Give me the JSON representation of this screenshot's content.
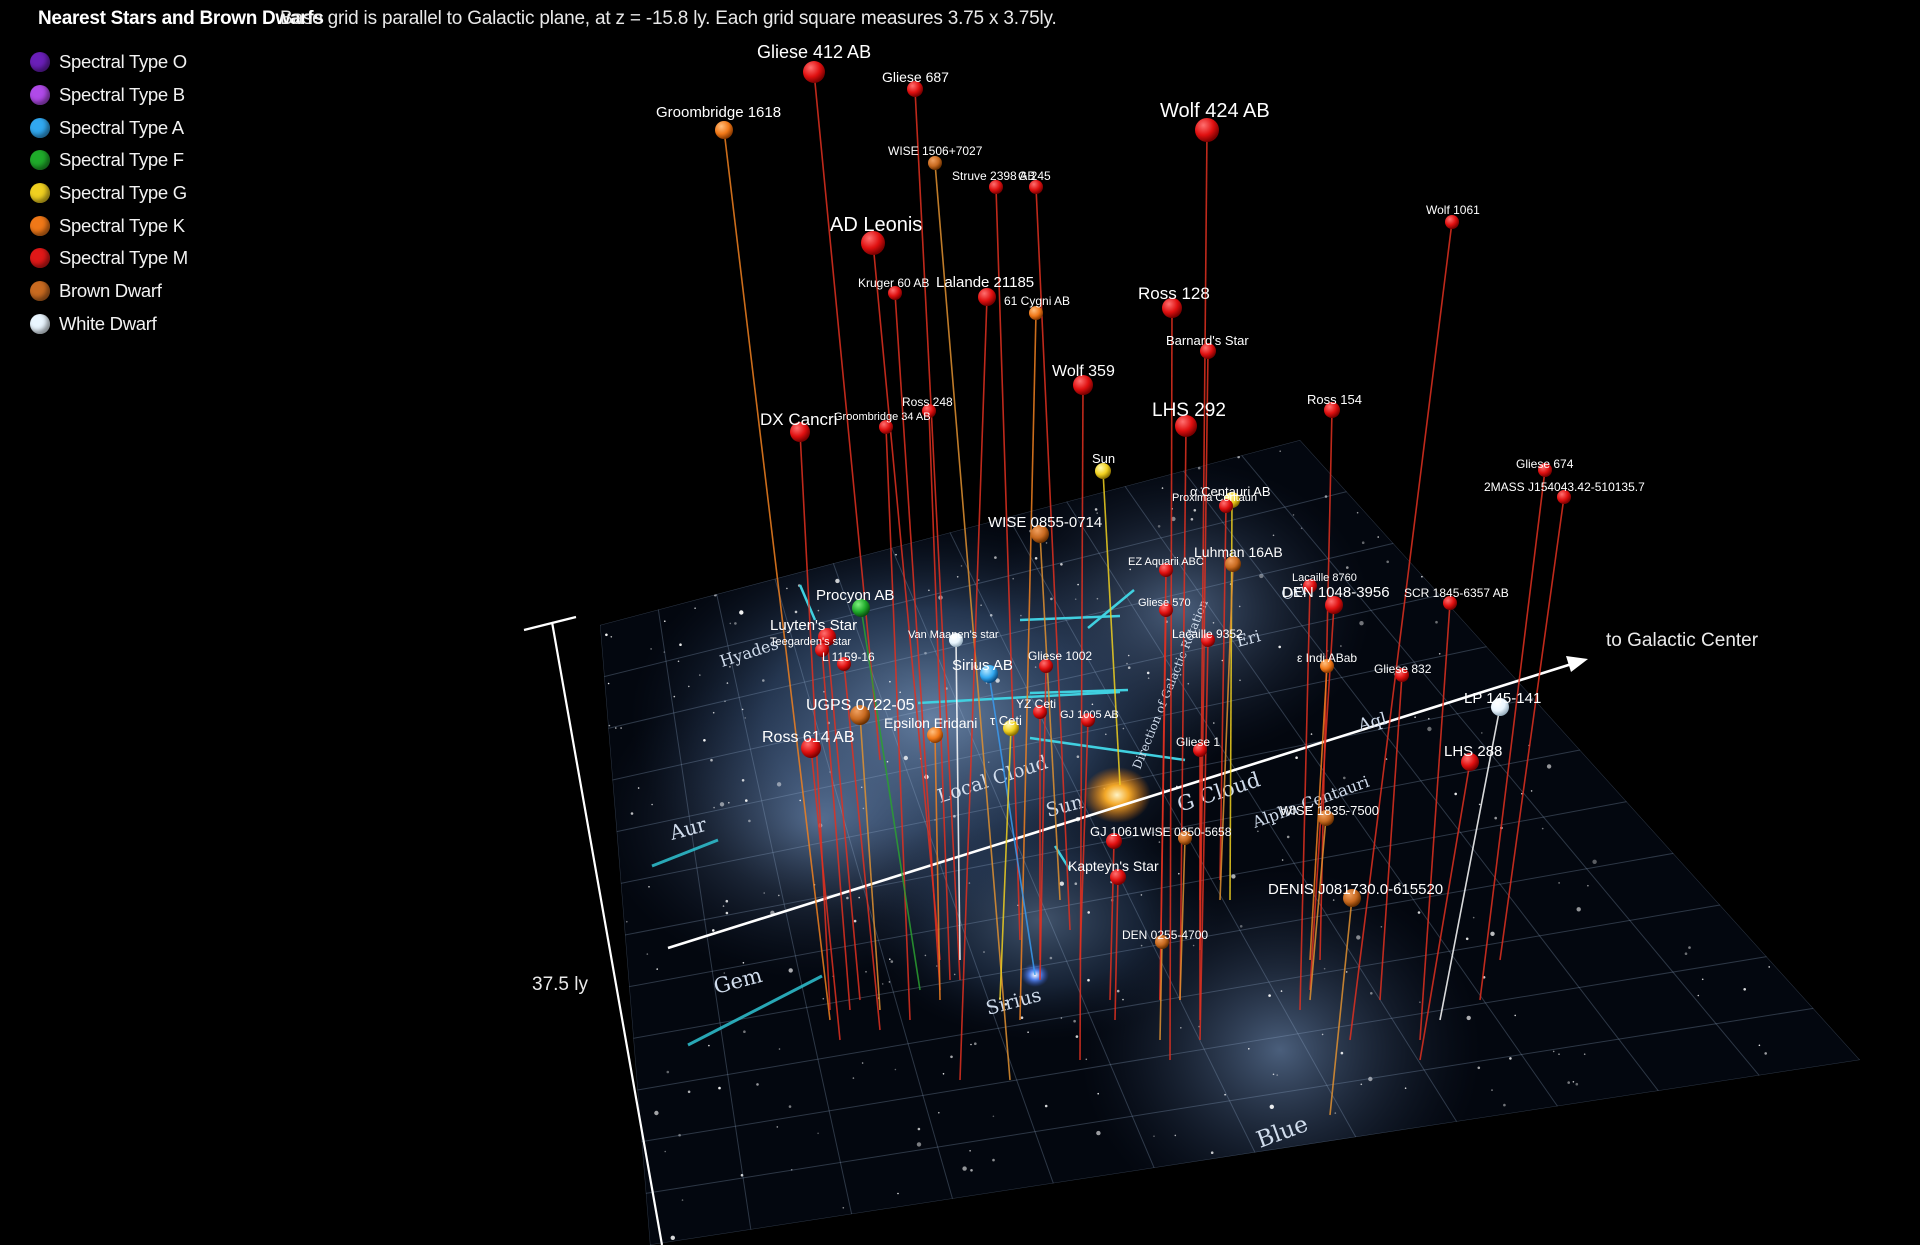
{
  "title": "Nearest Stars and Brown Dwarfs",
  "subtitle": "Base grid is parallel to Galactic plane, at z = -15.8 ly. Each grid square measures 3.75 x 3.75ly.",
  "legend": [
    {
      "label": "Spectral Type O",
      "color": "#6a1fb8"
    },
    {
      "label": "Spectral Type B",
      "color": "#b04ae8"
    },
    {
      "label": "Spectral Type A",
      "color": "#31a8f0"
    },
    {
      "label": "Spectral Type F",
      "color": "#1faa2a"
    },
    {
      "label": "Spectral Type G",
      "color": "#f0d020"
    },
    {
      "label": "Spectral Type K",
      "color": "#f07818"
    },
    {
      "label": "Spectral Type M",
      "color": "#e01818"
    },
    {
      "label": "Brown Dwarf",
      "color": "#c86a20"
    },
    {
      "label": "White Dwarf",
      "color": "#eaf6ff"
    }
  ],
  "scale_label": "37.5 ly",
  "axis_label": "to Galactic Center",
  "stars": [
    {
      "name": "Gliese 412 AB",
      "type": "M"
    },
    {
      "name": "Gliese 687",
      "type": "M"
    },
    {
      "name": "Groombridge 1618",
      "type": "K"
    },
    {
      "name": "Wolf 424 AB",
      "type": "M"
    },
    {
      "name": "WISE 1506+7027",
      "type": "BD"
    },
    {
      "name": "Struve 2398 AB",
      "type": "M"
    },
    {
      "name": "G 245",
      "type": "M"
    },
    {
      "name": "Wolf 1061",
      "type": "M"
    },
    {
      "name": "AD Leonis",
      "type": "M"
    },
    {
      "name": "Kruger 60 AB",
      "type": "M"
    },
    {
      "name": "Lalande 21185",
      "type": "M"
    },
    {
      "name": "61 Cygni AB",
      "type": "K"
    },
    {
      "name": "Ross 128",
      "type": "M"
    },
    {
      "name": "Barnard's Star",
      "type": "M"
    },
    {
      "name": "Wolf 359",
      "type": "M"
    },
    {
      "name": "Ross 248",
      "type": "M"
    },
    {
      "name": "Groombridge 34 AB",
      "type": "M"
    },
    {
      "name": "DX Cancri",
      "type": "M"
    },
    {
      "name": "LHS 292",
      "type": "M"
    },
    {
      "name": "Ross 154",
      "type": "M"
    },
    {
      "name": "Sun",
      "type": "G"
    },
    {
      "name": "α Centauri AB",
      "type": "G"
    },
    {
      "name": "Proxima Centauri",
      "type": "M"
    },
    {
      "name": "Gliese 674",
      "type": "M"
    },
    {
      "name": "2MASS J154043.42-510135.7",
      "type": "M"
    },
    {
      "name": "WISE 0855-0714",
      "type": "BD"
    },
    {
      "name": "EZ Aquarii ABC",
      "type": "M"
    },
    {
      "name": "Luhman 16AB",
      "type": "BD"
    },
    {
      "name": "Lacaille 8760",
      "type": "M"
    },
    {
      "name": "DEN 1048-3956",
      "type": "M"
    },
    {
      "name": "SCR 1845-6357 AB",
      "type": "M"
    },
    {
      "name": "Gliese 570",
      "type": "M"
    },
    {
      "name": "Lacaille 9352",
      "type": "M"
    },
    {
      "name": "Procyon AB",
      "type": "F"
    },
    {
      "name": "Luyten's Star",
      "type": "M"
    },
    {
      "name": "Teegarden's star",
      "type": "M"
    },
    {
      "name": "L 1159-16",
      "type": "M"
    },
    {
      "name": "Van Maanen's star",
      "type": "WD"
    },
    {
      "name": "Sirius AB",
      "type": "A"
    },
    {
      "name": "Gliese 1002",
      "type": "M"
    },
    {
      "name": "ε Indi ABab",
      "type": "K"
    },
    {
      "name": "Gliese 832",
      "type": "M"
    },
    {
      "name": "LP 145-141",
      "type": "WD"
    },
    {
      "name": "UGPS 0722-05",
      "type": "BD"
    },
    {
      "name": "YZ Ceti",
      "type": "M"
    },
    {
      "name": "GJ 1005 AB",
      "type": "M"
    },
    {
      "name": "τ Ceti",
      "type": "G"
    },
    {
      "name": "Epsilon Eridani",
      "type": "K"
    },
    {
      "name": "Ross 614 AB",
      "type": "M"
    },
    {
      "name": "Gliese 1",
      "type": "M"
    },
    {
      "name": "LHS 288",
      "type": "M"
    },
    {
      "name": "GJ 1061",
      "type": "M"
    },
    {
      "name": "WISE 0350-5658",
      "type": "BD"
    },
    {
      "name": "WISE 1835-7500",
      "type": "BD"
    },
    {
      "name": "Kapteyn's Star",
      "type": "M"
    },
    {
      "name": "DENIS J081730.0-615520",
      "type": "BD"
    },
    {
      "name": "DEN 0255-4700",
      "type": "BD"
    }
  ],
  "regions": [
    "Hyades",
    "Local Cloud",
    "G Cloud",
    "Aur",
    "Gem",
    "Sirius",
    "Aql",
    "Eri",
    "Ori",
    "Alpha Centauri",
    "Blue",
    "Sun",
    "Direction of Galactic Rotation"
  ]
}
